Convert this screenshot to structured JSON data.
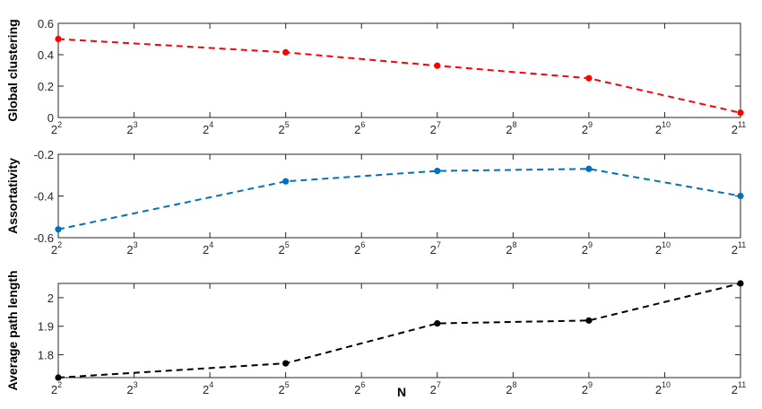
{
  "chart_data": [
    {
      "type": "line",
      "xlabel": "",
      "ylabel": "Global clustering",
      "x": [
        2,
        5,
        7,
        9,
        11
      ],
      "x_tick_base": "2",
      "x_ticks": [
        "2",
        "3",
        "4",
        "5",
        "6",
        "7",
        "8",
        "9",
        "10",
        "11"
      ],
      "y_ticks": [
        "0",
        "0.2",
        "0.4",
        "0.6"
      ],
      "ylim": [
        0,
        0.6
      ],
      "grid": false,
      "series": [
        {
          "values": [
            0.5,
            0.415,
            0.33,
            0.25,
            0.03
          ],
          "color": "#ff0000",
          "style": "dashed"
        }
      ]
    },
    {
      "type": "line",
      "xlabel": "",
      "ylabel": "Assortativity",
      "x": [
        2,
        5,
        7,
        9,
        11
      ],
      "x_tick_base": "2",
      "x_ticks": [
        "2",
        "3",
        "4",
        "5",
        "6",
        "7",
        "8",
        "9",
        "10",
        "11"
      ],
      "y_ticks": [
        "-0.6",
        "-0.4",
        "-0.2"
      ],
      "ylim": [
        -0.6,
        -0.2
      ],
      "grid": false,
      "series": [
        {
          "values": [
            -0.56,
            -0.33,
            -0.28,
            -0.27,
            -0.4
          ],
          "color": "#0072bd",
          "style": "dashed"
        }
      ]
    },
    {
      "type": "line",
      "xlabel": "N",
      "ylabel": "Average path length",
      "x": [
        2,
        5,
        7,
        9,
        11
      ],
      "x_tick_base": "2",
      "x_ticks": [
        "2",
        "3",
        "4",
        "5",
        "6",
        "7",
        "8",
        "9",
        "10",
        "11"
      ],
      "y_ticks": [
        "1.8",
        "1.9",
        "2"
      ],
      "ylim": [
        1.72,
        2.05
      ],
      "grid": false,
      "series": [
        {
          "values": [
            1.72,
            1.77,
            1.91,
            1.92,
            2.05
          ],
          "color": "#000000",
          "style": "dashed"
        }
      ]
    }
  ]
}
